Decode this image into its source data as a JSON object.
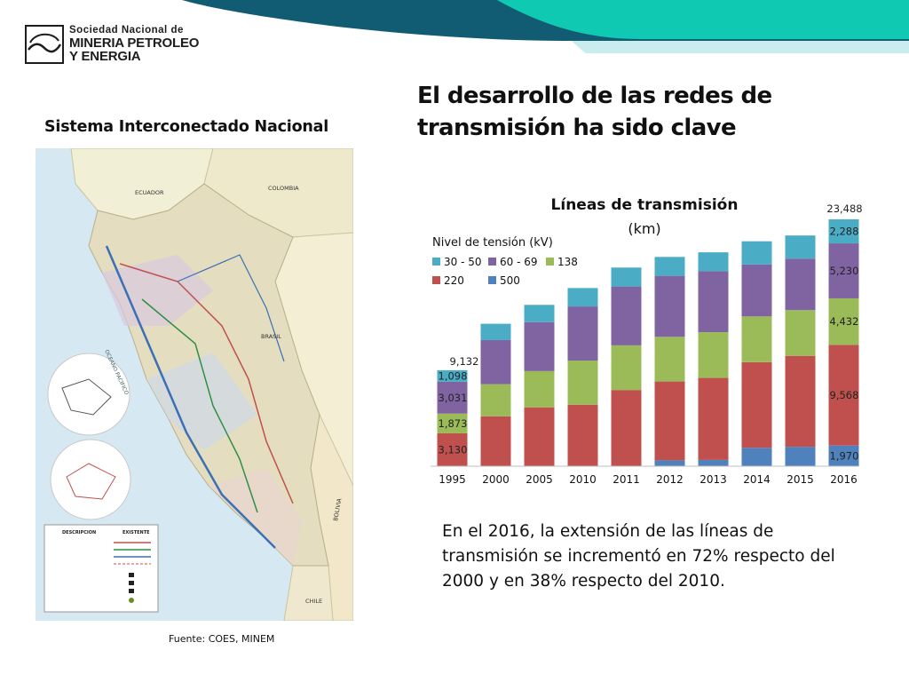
{
  "header": {
    "logo_line1": "Sociedad Nacional de",
    "logo_line2": "MINERIA PETROLEO",
    "logo_line3": "Y ENERGIA"
  },
  "page_title": "El desarrollo de las redes de transmisión ha sido clave",
  "map_section": {
    "title": "Sistema Interconectado Nacional",
    "source": "Fuente: COES, MINEM",
    "labels": {
      "ecuador": "ECUADOR",
      "colombia": "COLOMBIA",
      "brasil": "BRASIL",
      "bolivia": "BOLIVIA",
      "chile": "CHILE",
      "ocean": "OCEANO PACIFICO",
      "legend_head_1": "DESCRIPCION",
      "legend_head_2": "EXISTENTE"
    }
  },
  "summary_text": "En el 2016, la extensión de las líneas de transmisión se incrementó en 72% respecto del 2000 y en 38% respecto del 2010.",
  "colors": {
    "banner_dark": "#125c73",
    "banner_teal": "#10c9b3",
    "banner_light": "#c9ecee",
    "s30_50": "#4bacc6",
    "s60_69": "#8064a2",
    "s138": "#9bbb59",
    "s220": "#c0504d",
    "s500": "#4f81bd"
  },
  "chart_data": {
    "type": "bar",
    "stacked": true,
    "title": "Líneas de transmisión",
    "subtitle": "(km)",
    "legend_title": "Nivel de tensión (kV)",
    "categories": [
      "1995",
      "2000",
      "2005",
      "2010",
      "2011",
      "2012",
      "2013",
      "2014",
      "2015",
      "2016"
    ],
    "series": [
      {
        "name": "500",
        "values": [
          0,
          0,
          0,
          0,
          0,
          560,
          600,
          1750,
          1850,
          1970
        ]
      },
      {
        "name": "220",
        "values": [
          3130,
          4750,
          5600,
          5850,
          7250,
          7500,
          7800,
          8150,
          8650,
          9568
        ]
      },
      {
        "name": "138",
        "values": [
          1873,
          3050,
          3450,
          4200,
          4250,
          4250,
          4350,
          4350,
          4350,
          4432
        ]
      },
      {
        "name": "60 - 69",
        "values": [
          3031,
          4200,
          4650,
          5150,
          5600,
          5800,
          5800,
          4950,
          4900,
          5230
        ]
      },
      {
        "name": "30 - 50",
        "values": [
          1098,
          1550,
          1650,
          1750,
          1800,
          1800,
          1800,
          2200,
          2200,
          2288
        ]
      }
    ],
    "data_labels_1995": [
      "3,130",
      "1,873",
      "3,031",
      "1,098"
    ],
    "total_1995": "9,132",
    "data_labels_2016": [
      "1,970",
      "9,568",
      "4,432",
      "5,230",
      "2,288"
    ],
    "total_2016": "23,488",
    "legend_order": [
      "30 - 50",
      "60 - 69",
      "138",
      "220",
      "500"
    ],
    "ylim": [
      0,
      24500
    ]
  }
}
